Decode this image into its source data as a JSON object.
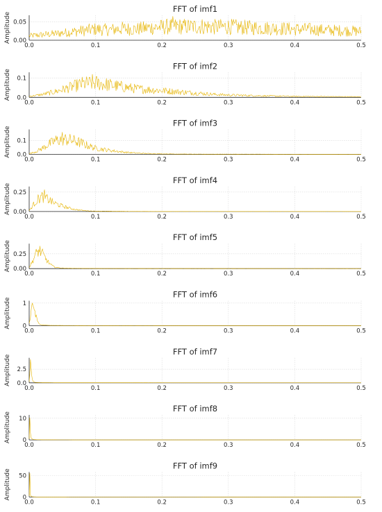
{
  "figure": {
    "background": "#ffffff",
    "line_color": "#e6b400"
  },
  "chart_data": [
    {
      "type": "line",
      "title": "FFT of imf1",
      "ylabel": "Amplitude",
      "xlim": [
        0,
        0.5
      ],
      "ylim": [
        0,
        0.068
      ],
      "xticks": [
        "0.0",
        "0.1",
        "0.2",
        "0.3",
        "0.4",
        "0.5"
      ],
      "yticks": [
        0,
        0.05
      ],
      "ytick_labels": [
        "0.00",
        "0.05"
      ],
      "grid": true,
      "series": [
        {
          "color": "#e6b400",
          "x": [
            0,
            0.02,
            0.04,
            0.06,
            0.08,
            0.1,
            0.12,
            0.14,
            0.16,
            0.18,
            0.2,
            0.22,
            0.24,
            0.26,
            0.28,
            0.3,
            0.32,
            0.34,
            0.36,
            0.38,
            0.4,
            0.42,
            0.44,
            0.46,
            0.48,
            0.5
          ],
          "y": [
            0.012,
            0.015,
            0.018,
            0.022,
            0.026,
            0.03,
            0.028,
            0.032,
            0.03,
            0.034,
            0.036,
            0.038,
            0.037,
            0.038,
            0.036,
            0.037,
            0.035,
            0.034,
            0.033,
            0.032,
            0.03,
            0.03,
            0.028,
            0.027,
            0.026,
            0.024
          ],
          "peak": 0.065,
          "noise": 0.6
        }
      ]
    },
    {
      "type": "line",
      "title": "FFT of imf2",
      "ylabel": "Amplitude",
      "xlim": [
        0,
        0.5
      ],
      "ylim": [
        0,
        0.13
      ],
      "xticks": [
        "0.0",
        "0.1",
        "0.2",
        "0.3",
        "0.4",
        "0.5"
      ],
      "yticks": [
        0,
        0.1
      ],
      "ytick_labels": [
        "0.0",
        "0.1"
      ],
      "grid": true,
      "series": [
        {
          "color": "#e6b400",
          "x": [
            0,
            0.02,
            0.04,
            0.06,
            0.08,
            0.1,
            0.12,
            0.14,
            0.16,
            0.18,
            0.2,
            0.22,
            0.24,
            0.26,
            0.28,
            0.3,
            0.35,
            0.4,
            0.45,
            0.5
          ],
          "y": [
            0.005,
            0.015,
            0.03,
            0.05,
            0.07,
            0.075,
            0.065,
            0.055,
            0.045,
            0.04,
            0.035,
            0.03,
            0.025,
            0.02,
            0.015,
            0.012,
            0.008,
            0.005,
            0.004,
            0.003
          ],
          "peak": 0.12,
          "noise": 0.55
        }
      ]
    },
    {
      "type": "line",
      "title": "FFT of imf3",
      "ylabel": "Amplitude",
      "xlim": [
        0,
        0.5
      ],
      "ylim": [
        0,
        0.18
      ],
      "xticks": [
        "0.0",
        "0.1",
        "0.2",
        "0.3",
        "0.4",
        "0.5"
      ],
      "yticks": [
        0,
        0.1
      ],
      "ytick_labels": [
        "0.0",
        "0.1"
      ],
      "grid": true,
      "series": [
        {
          "color": "#e6b400",
          "x": [
            0,
            0.01,
            0.02,
            0.03,
            0.04,
            0.05,
            0.06,
            0.07,
            0.08,
            0.09,
            0.1,
            0.12,
            0.14,
            0.16,
            0.18,
            0.2,
            0.25,
            0.3,
            0.4,
            0.5
          ],
          "y": [
            0.005,
            0.02,
            0.045,
            0.075,
            0.1,
            0.11,
            0.105,
            0.095,
            0.08,
            0.06,
            0.045,
            0.03,
            0.018,
            0.01,
            0.006,
            0.004,
            0.002,
            0.002,
            0.001,
            0.001
          ],
          "peak": 0.16,
          "noise": 0.45
        }
      ]
    },
    {
      "type": "line",
      "title": "FFT of imf4",
      "ylabel": "Amplitude",
      "xlim": [
        0,
        0.5
      ],
      "ylim": [
        0,
        0.32
      ],
      "xticks": [
        "0.0",
        "0.1",
        "0.2",
        "0.3",
        "0.4",
        "0.5"
      ],
      "yticks": [
        0,
        0.25
      ],
      "ytick_labels": [
        "0.00",
        "0.25"
      ],
      "grid": true,
      "series": [
        {
          "color": "#e6b400",
          "x": [
            0,
            0.005,
            0.01,
            0.015,
            0.02,
            0.025,
            0.03,
            0.035,
            0.04,
            0.05,
            0.06,
            0.07,
            0.08,
            0.09,
            0.1,
            0.15,
            0.2,
            0.3,
            0.4,
            0.5
          ],
          "y": [
            0.01,
            0.07,
            0.13,
            0.17,
            0.19,
            0.17,
            0.15,
            0.12,
            0.1,
            0.07,
            0.045,
            0.025,
            0.015,
            0.008,
            0.005,
            0.002,
            0.001,
            0.001,
            0.001,
            0.001
          ],
          "peak": 0.28,
          "noise": 0.4
        }
      ]
    },
    {
      "type": "line",
      "title": "FFT of imf5",
      "ylabel": "Amplitude",
      "xlim": [
        0,
        0.5
      ],
      "ylim": [
        0,
        0.42
      ],
      "xticks": [
        "0.0",
        "0.1",
        "0.2",
        "0.3",
        "0.4",
        "0.5"
      ],
      "yticks": [
        0,
        0.25
      ],
      "ytick_labels": [
        "0.00",
        "0.25"
      ],
      "grid": true,
      "series": [
        {
          "color": "#e6b400",
          "x": [
            0,
            0.004,
            0.008,
            0.012,
            0.016,
            0.02,
            0.024,
            0.028,
            0.032,
            0.036,
            0.04,
            0.05,
            0.06,
            0.08,
            0.1,
            0.2,
            0.3,
            0.4,
            0.5
          ],
          "y": [
            0.02,
            0.1,
            0.2,
            0.28,
            0.3,
            0.25,
            0.18,
            0.12,
            0.07,
            0.04,
            0.02,
            0.01,
            0.006,
            0.004,
            0.003,
            0.002,
            0.002,
            0.001,
            0.001
          ],
          "peak": 0.38,
          "noise": 0.35
        }
      ]
    },
    {
      "type": "line",
      "title": "FFT of imf6",
      "ylabel": "Amplitude",
      "xlim": [
        0,
        0.5
      ],
      "ylim": [
        0,
        1.1
      ],
      "xticks": [
        "0.0",
        "0.1",
        "0.2",
        "0.3",
        "0.4",
        "0.5"
      ],
      "yticks": [
        0,
        1
      ],
      "ytick_labels": [
        "0",
        "1"
      ],
      "grid": true,
      "series": [
        {
          "color": "#e6b400",
          "x": [
            0,
            0.002,
            0.004,
            0.006,
            0.008,
            0.01,
            0.012,
            0.014,
            0.016,
            0.02,
            0.03,
            0.05,
            0.1,
            0.2,
            0.3,
            0.4,
            0.5
          ],
          "y": [
            0.1,
            0.4,
            0.75,
            0.95,
            0.7,
            0.45,
            0.25,
            0.12,
            0.06,
            0.03,
            0.015,
            0.01,
            0.005,
            0.003,
            0.002,
            0.002,
            0.001
          ],
          "peak": 1.0,
          "noise": 0.25
        }
      ]
    },
    {
      "type": "line",
      "title": "FFT of imf7",
      "ylabel": "Amplitude",
      "xlim": [
        0,
        0.5
      ],
      "ylim": [
        0,
        4.6
      ],
      "xticks": [
        "0.0",
        "0.1",
        "0.2",
        "0.3",
        "0.4",
        "0.5"
      ],
      "yticks": [
        0,
        2.5
      ],
      "ytick_labels": [
        "0.0",
        "2.5"
      ],
      "grid": true,
      "series": [
        {
          "color": "#e6b400",
          "x": [
            0,
            0.001,
            0.002,
            0.003,
            0.004,
            0.005,
            0.006,
            0.008,
            0.01,
            0.02,
            0.05,
            0.1,
            0.2,
            0.3,
            0.4,
            0.5
          ],
          "y": [
            0.2,
            1.5,
            4.3,
            2.8,
            1.2,
            0.5,
            0.25,
            0.12,
            0.07,
            0.03,
            0.015,
            0.01,
            0.008,
            0.006,
            0.005,
            0.005
          ],
          "peak": 4.3,
          "noise": 0.1
        }
      ]
    },
    {
      "type": "line",
      "title": "FFT of imf8",
      "ylabel": "Amplitude",
      "xlim": [
        0,
        0.5
      ],
      "ylim": [
        0,
        11.5
      ],
      "xticks": [
        "0.0",
        "0.1",
        "0.2",
        "0.3",
        "0.4",
        "0.5"
      ],
      "yticks": [
        0,
        10
      ],
      "ytick_labels": [
        "0",
        "10"
      ],
      "grid": true,
      "series": [
        {
          "color": "#e6b400",
          "x": [
            0,
            0.0005,
            0.001,
            0.0015,
            0.002,
            0.003,
            0.004,
            0.006,
            0.01,
            0.02,
            0.05,
            0.1,
            0.2,
            0.3,
            0.4,
            0.5
          ],
          "y": [
            0.5,
            4,
            10.2,
            6,
            2.5,
            1.0,
            0.5,
            0.25,
            0.12,
            0.06,
            0.03,
            0.02,
            0.015,
            0.012,
            0.01,
            0.01
          ],
          "peak": 10.2,
          "noise": 0.05
        }
      ]
    },
    {
      "type": "line",
      "title": "FFT of imf9",
      "ylabel": "Amplitude",
      "xlim": [
        0,
        0.5
      ],
      "ylim": [
        0,
        58
      ],
      "xticks": [
        "0.0",
        "0.1",
        "0.2",
        "0.3",
        "0.4",
        "0.5"
      ],
      "yticks": [
        0,
        50
      ],
      "ytick_labels": [
        "0",
        "50"
      ],
      "grid": true,
      "series": [
        {
          "color": "#e6b400",
          "x": [
            0,
            0.0003,
            0.0006,
            0.001,
            0.0015,
            0.002,
            0.003,
            0.005,
            0.01,
            0.02,
            0.05,
            0.1,
            0.2,
            0.3,
            0.4,
            0.5
          ],
          "y": [
            2,
            20,
            55,
            30,
            10,
            4,
            1.5,
            0.6,
            0.25,
            0.12,
            0.06,
            0.04,
            0.03,
            0.02,
            0.02,
            0.02
          ],
          "peak": 55,
          "noise": 0.03
        }
      ]
    }
  ]
}
